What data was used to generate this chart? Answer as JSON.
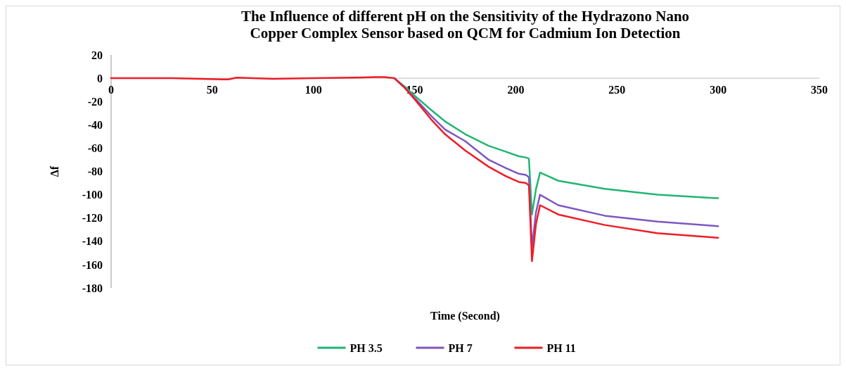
{
  "chart_data": {
    "type": "line",
    "title": "The Influence of different pH on the Sensitivity of  the Hydrazono Nano Copper Complex Sensor based on QCM for Cadmium Ion Detection",
    "xlabel": "Time (Second)",
    "ylabel": "Δf",
    "xlim": [
      0,
      350
    ],
    "xticks": [
      0,
      50,
      100,
      150,
      200,
      250,
      300,
      350
    ],
    "ylim": [
      -180,
      20
    ],
    "yticks": [
      20,
      0,
      -20,
      -40,
      -60,
      -80,
      -100,
      -120,
      -140,
      -160,
      -180
    ],
    "legend": "bottom",
    "grid": false,
    "marker": "none",
    "line_style": "solid",
    "x": [
      0,
      30,
      55,
      58,
      62,
      80,
      100,
      120,
      130,
      135,
      140,
      145,
      150,
      158,
      165,
      175,
      186.6,
      195,
      201.5,
      205,
      206.5,
      208,
      210,
      212,
      221,
      244,
      270,
      300
    ],
    "series": [
      {
        "name": "PH 3.5",
        "color": "#22b573",
        "values": [
          null,
          null,
          null,
          null,
          null,
          null,
          null,
          null,
          null,
          null,
          0,
          -7,
          -15,
          -27,
          -37,
          -48,
          -58,
          -63,
          -67,
          -68,
          -69,
          -117,
          -95,
          -81,
          -88,
          -95,
          -100,
          -103
        ]
      },
      {
        "name": "PH 7",
        "color": "#7e57c2",
        "values": [
          null,
          null,
          null,
          null,
          null,
          null,
          null,
          null,
          null,
          null,
          0,
          -8,
          -17,
          -32,
          -44,
          -54,
          -70,
          -77,
          -82,
          -83,
          -85,
          -145,
          -115,
          -100,
          -109,
          -118,
          -123,
          -127
        ]
      },
      {
        "name": "PH 11",
        "color": "#ee1c25",
        "values": [
          0,
          0,
          -1,
          -1,
          0.5,
          -0.5,
          0,
          0.5,
          1,
          1,
          0,
          -8,
          -18,
          -35,
          -48,
          -62,
          -76,
          -84,
          -89,
          -90,
          -92,
          -157,
          -125,
          -109,
          -117,
          -126,
          -133,
          -137
        ]
      }
    ]
  }
}
